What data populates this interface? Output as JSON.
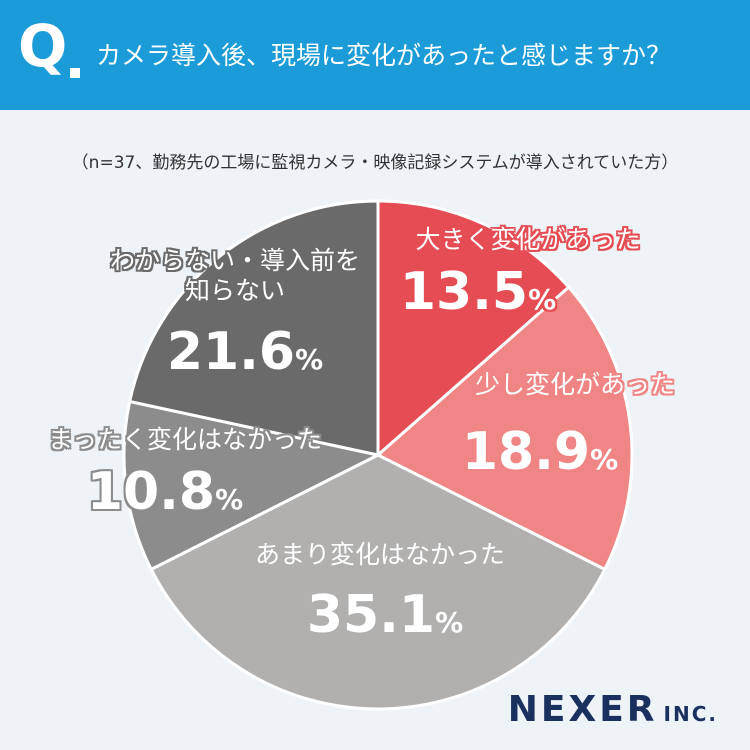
{
  "chart_data": {
    "type": "pie",
    "title": "カメラ導入後、現場に変化があったと感じますか？",
    "subtitle": "（n=37、勤務先の工場に監視カメラ・映像記録システムが導入されていた方）",
    "categories": [
      "大きく変化があった",
      "少し変化があった",
      "あまり変化はなかった",
      "まったく変化はなかった",
      "わからない・導入前を知らない"
    ],
    "values": [
      13.5,
      18.9,
      35.1,
      10.8,
      21.6
    ],
    "value_labels": [
      "13.5%",
      "18.9%",
      "35.1%",
      "10.8%",
      "21.6%"
    ],
    "colors": [
      "#e54c53",
      "#f08585",
      "#b1b0af",
      "#8c8c8c",
      "#6a6a6a"
    ]
  },
  "header": {
    "mark": "Q",
    "logo": "NEXER",
    "logo_suffix": "INC."
  }
}
